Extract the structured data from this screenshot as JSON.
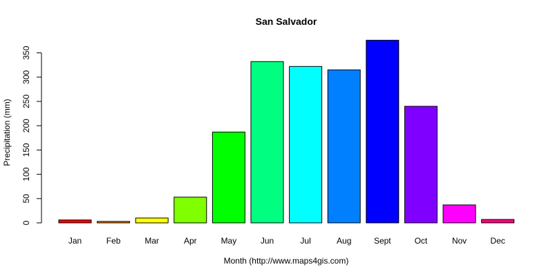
{
  "chart_data": {
    "type": "bar",
    "title": "San Salvador",
    "xlabel": "Month (http://www.maps4gis.com)",
    "ylabel": "Precipitation (mm)",
    "ylim": [
      0,
      375
    ],
    "yticks": [
      0,
      50,
      100,
      150,
      200,
      250,
      300,
      350
    ],
    "categories": [
      "Jan",
      "Feb",
      "Mar",
      "Apr",
      "May",
      "Jun",
      "Jul",
      "Aug",
      "Sept",
      "Oct",
      "Nov",
      "Dec"
    ],
    "values": [
      6,
      3,
      10,
      53,
      187,
      332,
      322,
      315,
      376,
      240,
      37,
      7
    ],
    "colors": [
      "#FF0000",
      "#FF8000",
      "#FFFF00",
      "#80FF00",
      "#00FF00",
      "#00FF80",
      "#00FFFF",
      "#0080FF",
      "#0000FF",
      "#8000FF",
      "#FF00FF",
      "#FF0080"
    ]
  }
}
